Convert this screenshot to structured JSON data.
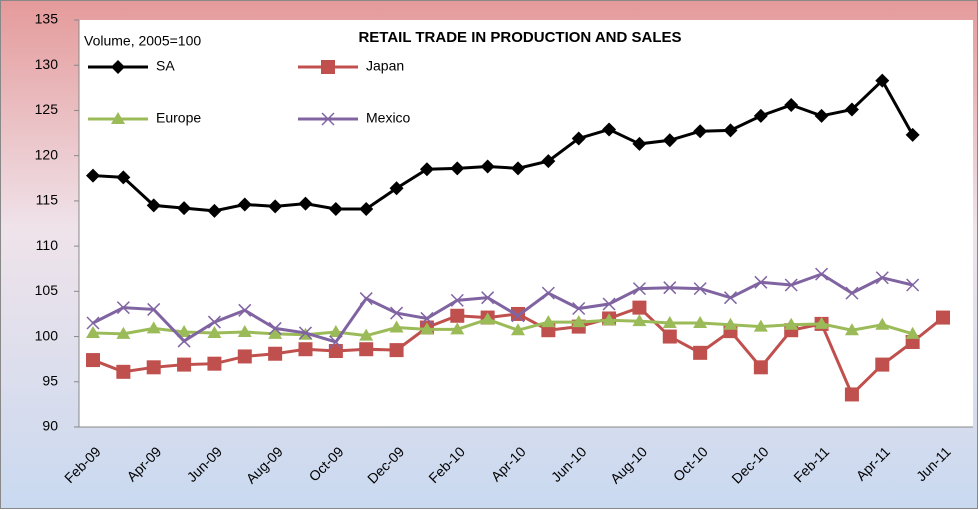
{
  "chart_data": {
    "type": "line",
    "title": "RETAIL TRADE IN PRODUCTION AND SALES",
    "annotation": "Volume, 2005=100",
    "categories": [
      "Feb-09",
      null,
      "Apr-09",
      null,
      "Jun-09",
      null,
      "Aug-09",
      null,
      "Oct-09",
      null,
      "Dec-09",
      null,
      "Feb-10",
      null,
      "Apr-10",
      null,
      "Jun-10",
      null,
      "Aug-10",
      null,
      "Oct-10",
      null,
      "Dec-10",
      null,
      "Feb-11",
      null,
      "Apr-11",
      null,
      "Jun-11"
    ],
    "series": [
      {
        "name": "SA",
        "color": "#000000",
        "marker": "diamond",
        "values": [
          117.8,
          117.6,
          114.5,
          114.2,
          113.9,
          114.6,
          114.4,
          114.7,
          114.1,
          114.1,
          116.4,
          118.5,
          118.6,
          118.8,
          118.6,
          119.4,
          121.9,
          122.9,
          121.3,
          121.7,
          122.7,
          122.8,
          124.4,
          125.6,
          124.4,
          125.1,
          128.3,
          122.3,
          null
        ]
      },
      {
        "name": "Japan",
        "color": "#c0504d",
        "marker": "square",
        "values": [
          97.4,
          96.1,
          96.6,
          96.9,
          97.0,
          97.8,
          98.1,
          98.6,
          98.4,
          98.6,
          98.5,
          101.0,
          102.3,
          102.1,
          102.5,
          100.7,
          101.1,
          102.0,
          103.2,
          100.0,
          98.2,
          100.6,
          96.6,
          100.7,
          101.4,
          93.6,
          96.9,
          99.4,
          102.1
        ]
      },
      {
        "name": "Europe",
        "color": "#9bbb59",
        "marker": "triangle",
        "values": [
          100.4,
          100.3,
          100.9,
          100.5,
          100.4,
          100.5,
          100.3,
          100.2,
          100.5,
          100.1,
          101.0,
          100.8,
          100.8,
          101.9,
          100.7,
          101.6,
          101.6,
          101.8,
          101.7,
          101.5,
          101.5,
          101.3,
          101.1,
          101.3,
          101.4,
          100.7,
          101.3,
          100.3,
          null
        ]
      },
      {
        "name": "Mexico",
        "color": "#8064a2",
        "marker": "x",
        "values": [
          101.5,
          103.2,
          103.0,
          99.5,
          101.6,
          102.9,
          100.9,
          100.4,
          99.4,
          104.2,
          102.6,
          102.0,
          104.0,
          104.3,
          102.3,
          104.8,
          103.1,
          103.6,
          105.3,
          105.4,
          105.3,
          104.3,
          106.0,
          105.7,
          106.9,
          104.8,
          106.5,
          105.7,
          null
        ]
      }
    ],
    "ylim": [
      90,
      135
    ],
    "yticks": [
      90,
      95,
      100,
      105,
      110,
      115,
      120,
      125,
      130,
      135
    ]
  }
}
